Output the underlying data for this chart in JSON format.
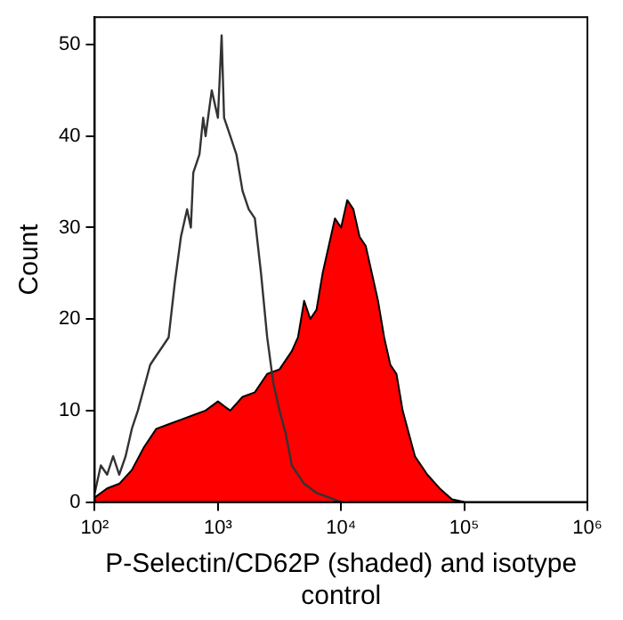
{
  "chart_data": {
    "type": "area",
    "xlabel": "P-Selectin/CD62P (shaded) and isotype control",
    "ylabel": "Count",
    "log": "x",
    "grid": false,
    "legend": false,
    "xlim": [
      100,
      1000000
    ],
    "xticks": [
      {
        "value": 100,
        "label": "10²"
      },
      {
        "value": 1000,
        "label": "10³"
      },
      {
        "value": 10000,
        "label": "10⁴"
      },
      {
        "value": 100000,
        "label": "10⁵"
      },
      {
        "value": 1000000,
        "label": "10⁶"
      }
    ],
    "ylim": [
      0,
      53
    ],
    "yticks": [
      0,
      10,
      20,
      30,
      40,
      50
    ],
    "series": [
      {
        "color": "#ff0000",
        "x": [
          100,
          126,
          158,
          200,
          251,
          316,
          398,
          501,
          631,
          794,
          1000,
          1259,
          1585,
          1995,
          2512,
          3162,
          3548,
          3981,
          4467,
          5012,
          5623,
          6310,
          7079,
          7943,
          8913,
          10000,
          11220,
          12589,
          14125,
          15849,
          17783,
          19953,
          22387,
          25119,
          28184,
          31623,
          35481,
          39811,
          50119,
          63096,
          79433,
          100000
        ],
        "values": [
          0.5,
          1.5,
          2,
          3.5,
          6,
          8,
          8.5,
          9,
          9.5,
          10,
          11,
          10,
          11.5,
          12,
          14,
          14.5,
          15.5,
          16.5,
          18,
          22,
          20,
          21,
          25,
          28,
          31,
          30,
          33,
          32,
          29,
          28,
          25,
          22,
          18,
          15,
          14,
          10,
          7.5,
          5,
          3,
          1.5,
          0.3,
          0
        ]
      },
      {
        "type": "line",
        "color": "#333333",
        "x": [
          100,
          112,
          126,
          141,
          158,
          178,
          200,
          224,
          282,
          316,
          355,
          398,
          447,
          501,
          562,
          603,
          631,
          708,
          759,
          794,
          891,
          1000,
          1072,
          1122,
          1259,
          1413,
          1585,
          1778,
          1995,
          2239,
          2512,
          2818,
          3162,
          3548,
          3981,
          5012,
          6310,
          7943,
          10000
        ],
        "values": [
          1,
          4,
          3,
          5,
          3,
          5,
          8,
          10,
          15,
          16,
          17,
          18,
          24,
          29,
          32,
          30,
          36,
          38,
          42,
          40,
          45,
          42,
          51,
          42,
          40,
          38,
          34,
          32,
          31,
          25,
          18,
          13,
          10,
          7.5,
          4,
          2,
          1,
          0.5,
          0
        ]
      }
    ]
  }
}
